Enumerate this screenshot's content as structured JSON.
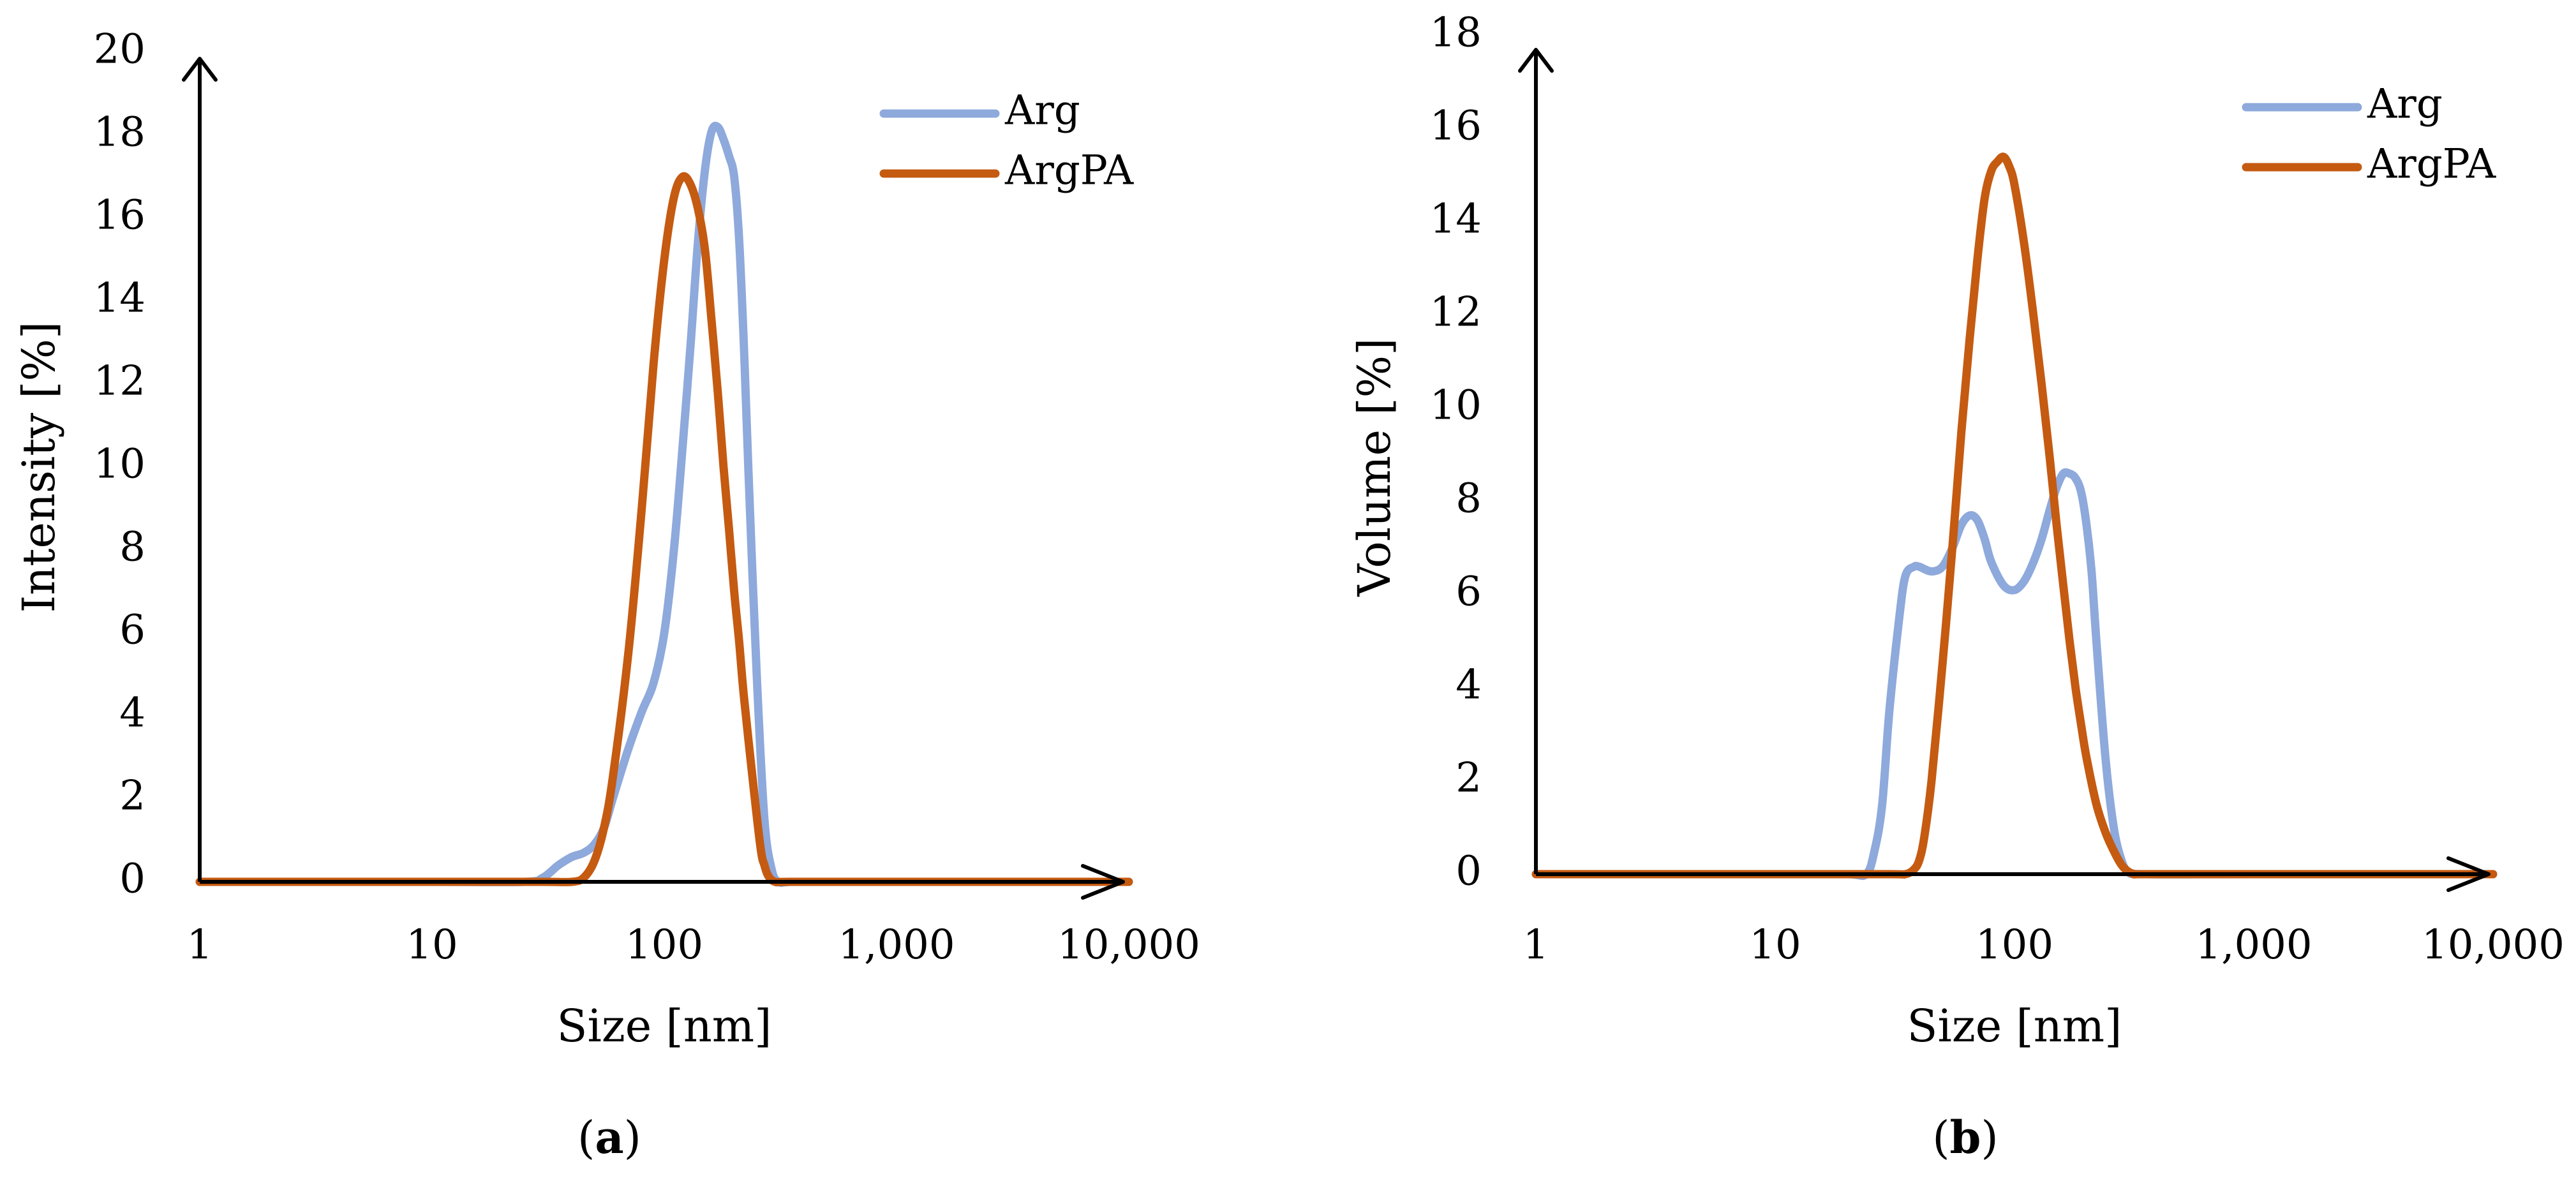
{
  "colors": {
    "Arg": "#8EA9DB",
    "ArgPA": "#C55A11",
    "axis": "#000000"
  },
  "chart_data": [
    {
      "id": "a",
      "type": "line",
      "caption_letter": "a",
      "xlabel": "Size [nm]",
      "ylabel": "Intensity [%]",
      "xscale": "log",
      "xlim": [
        1,
        10000
      ],
      "ylim": [
        0,
        20
      ],
      "x_ticks": [
        1,
        10,
        100,
        1000,
        10000
      ],
      "x_tick_labels": [
        "1",
        "10",
        "100",
        "1,000",
        "10,000"
      ],
      "y_ticks": [
        0,
        2,
        4,
        6,
        8,
        10,
        12,
        14,
        16,
        18,
        20
      ],
      "y_tick_labels": [
        "0",
        "2",
        "4",
        "6",
        "8",
        "10",
        "12",
        "14",
        "16",
        "18",
        "20"
      ],
      "legend_position": "top-right",
      "series": [
        {
          "name": "Arg",
          "color": "#8EA9DB",
          "x": [
            1,
            10,
            25,
            30,
            35,
            40,
            45,
            50,
            55,
            60,
            70,
            80,
            90,
            100,
            110,
            120,
            130,
            140,
            150,
            160,
            170,
            180,
            190,
            200,
            210,
            220,
            230,
            250,
            270,
            290,
            310,
            350,
            500,
            1000,
            10000
          ],
          "y": [
            0,
            0,
            0,
            0.1,
            0.4,
            0.6,
            0.7,
            0.9,
            1.3,
            2.0,
            3.2,
            4.1,
            4.8,
            6.0,
            8.0,
            10.5,
            13.0,
            15.5,
            17.2,
            18.1,
            18.2,
            17.9,
            17.5,
            17.0,
            15.5,
            13.0,
            10.0,
            5.0,
            1.5,
            0.3,
            0,
            0,
            0,
            0,
            0
          ]
        },
        {
          "name": "ArgPA",
          "color": "#C55A11",
          "x": [
            1,
            10,
            30,
            40,
            45,
            50,
            55,
            60,
            70,
            80,
            90,
            100,
            110,
            120,
            130,
            140,
            150,
            160,
            170,
            180,
            190,
            200,
            210,
            220,
            240,
            260,
            270,
            280,
            300,
            350,
            1000,
            10000
          ],
          "y": [
            0,
            0,
            0,
            0,
            0.1,
            0.5,
            1.3,
            2.5,
            5.5,
            9.0,
            12.5,
            15.0,
            16.5,
            17.0,
            16.8,
            16.2,
            15.2,
            13.5,
            11.8,
            10.0,
            8.5,
            7.0,
            5.8,
            4.5,
            2.5,
            0.8,
            0.4,
            0.15,
            0,
            0,
            0,
            0
          ]
        }
      ]
    },
    {
      "id": "b",
      "type": "line",
      "caption_letter": "b",
      "xlabel": "Size [nm]",
      "ylabel": "Volume [%]",
      "xscale": "log",
      "xlim": [
        1,
        10000
      ],
      "ylim": [
        0,
        18
      ],
      "x_ticks": [
        1,
        10,
        100,
        1000,
        10000
      ],
      "x_tick_labels": [
        "1",
        "10",
        "100",
        "1,000",
        "10,000"
      ],
      "y_ticks": [
        0,
        2,
        4,
        6,
        8,
        10,
        12,
        14,
        16,
        18
      ],
      "y_tick_labels": [
        "0",
        "2",
        "4",
        "6",
        "8",
        "10",
        "12",
        "14",
        "16",
        "18"
      ],
      "legend_position": "top-right",
      "series": [
        {
          "name": "Arg",
          "color": "#8EA9DB",
          "x": [
            1,
            10,
            20,
            24,
            26,
            28,
            30,
            33,
            35,
            38,
            40,
            45,
            50,
            55,
            60,
            65,
            70,
            75,
            80,
            90,
            100,
            110,
            120,
            130,
            140,
            150,
            160,
            170,
            180,
            190,
            200,
            210,
            220,
            240,
            260,
            280,
            300,
            350,
            1000,
            10000
          ],
          "y": [
            0,
            0,
            0,
            0,
            0.5,
            1.5,
            3.5,
            5.5,
            6.4,
            6.6,
            6.6,
            6.5,
            6.6,
            7.0,
            7.5,
            7.7,
            7.6,
            7.2,
            6.7,
            6.2,
            6.1,
            6.3,
            6.7,
            7.2,
            7.8,
            8.3,
            8.6,
            8.6,
            8.5,
            8.2,
            7.5,
            6.5,
            5.0,
            2.5,
            1.0,
            0.3,
            0.05,
            0,
            0,
            0
          ]
        },
        {
          "name": "ArgPA",
          "color": "#C55A11",
          "x": [
            1,
            10,
            30,
            35,
            38,
            40,
            42,
            45,
            50,
            55,
            60,
            65,
            70,
            75,
            80,
            85,
            90,
            95,
            100,
            110,
            120,
            130,
            140,
            150,
            160,
            170,
            180,
            190,
            200,
            220,
            240,
            260,
            280,
            300,
            320,
            350,
            1000,
            10000
          ],
          "y": [
            0,
            0,
            0,
            0,
            0.1,
            0.3,
            0.8,
            2.0,
            4.5,
            7.0,
            9.5,
            11.5,
            13.2,
            14.5,
            15.1,
            15.3,
            15.4,
            15.2,
            14.8,
            13.5,
            12.0,
            10.5,
            9.0,
            7.5,
            6.2,
            5.0,
            4.0,
            3.2,
            2.5,
            1.5,
            0.9,
            0.5,
            0.2,
            0.05,
            0,
            0,
            0,
            0
          ]
        }
      ]
    }
  ]
}
